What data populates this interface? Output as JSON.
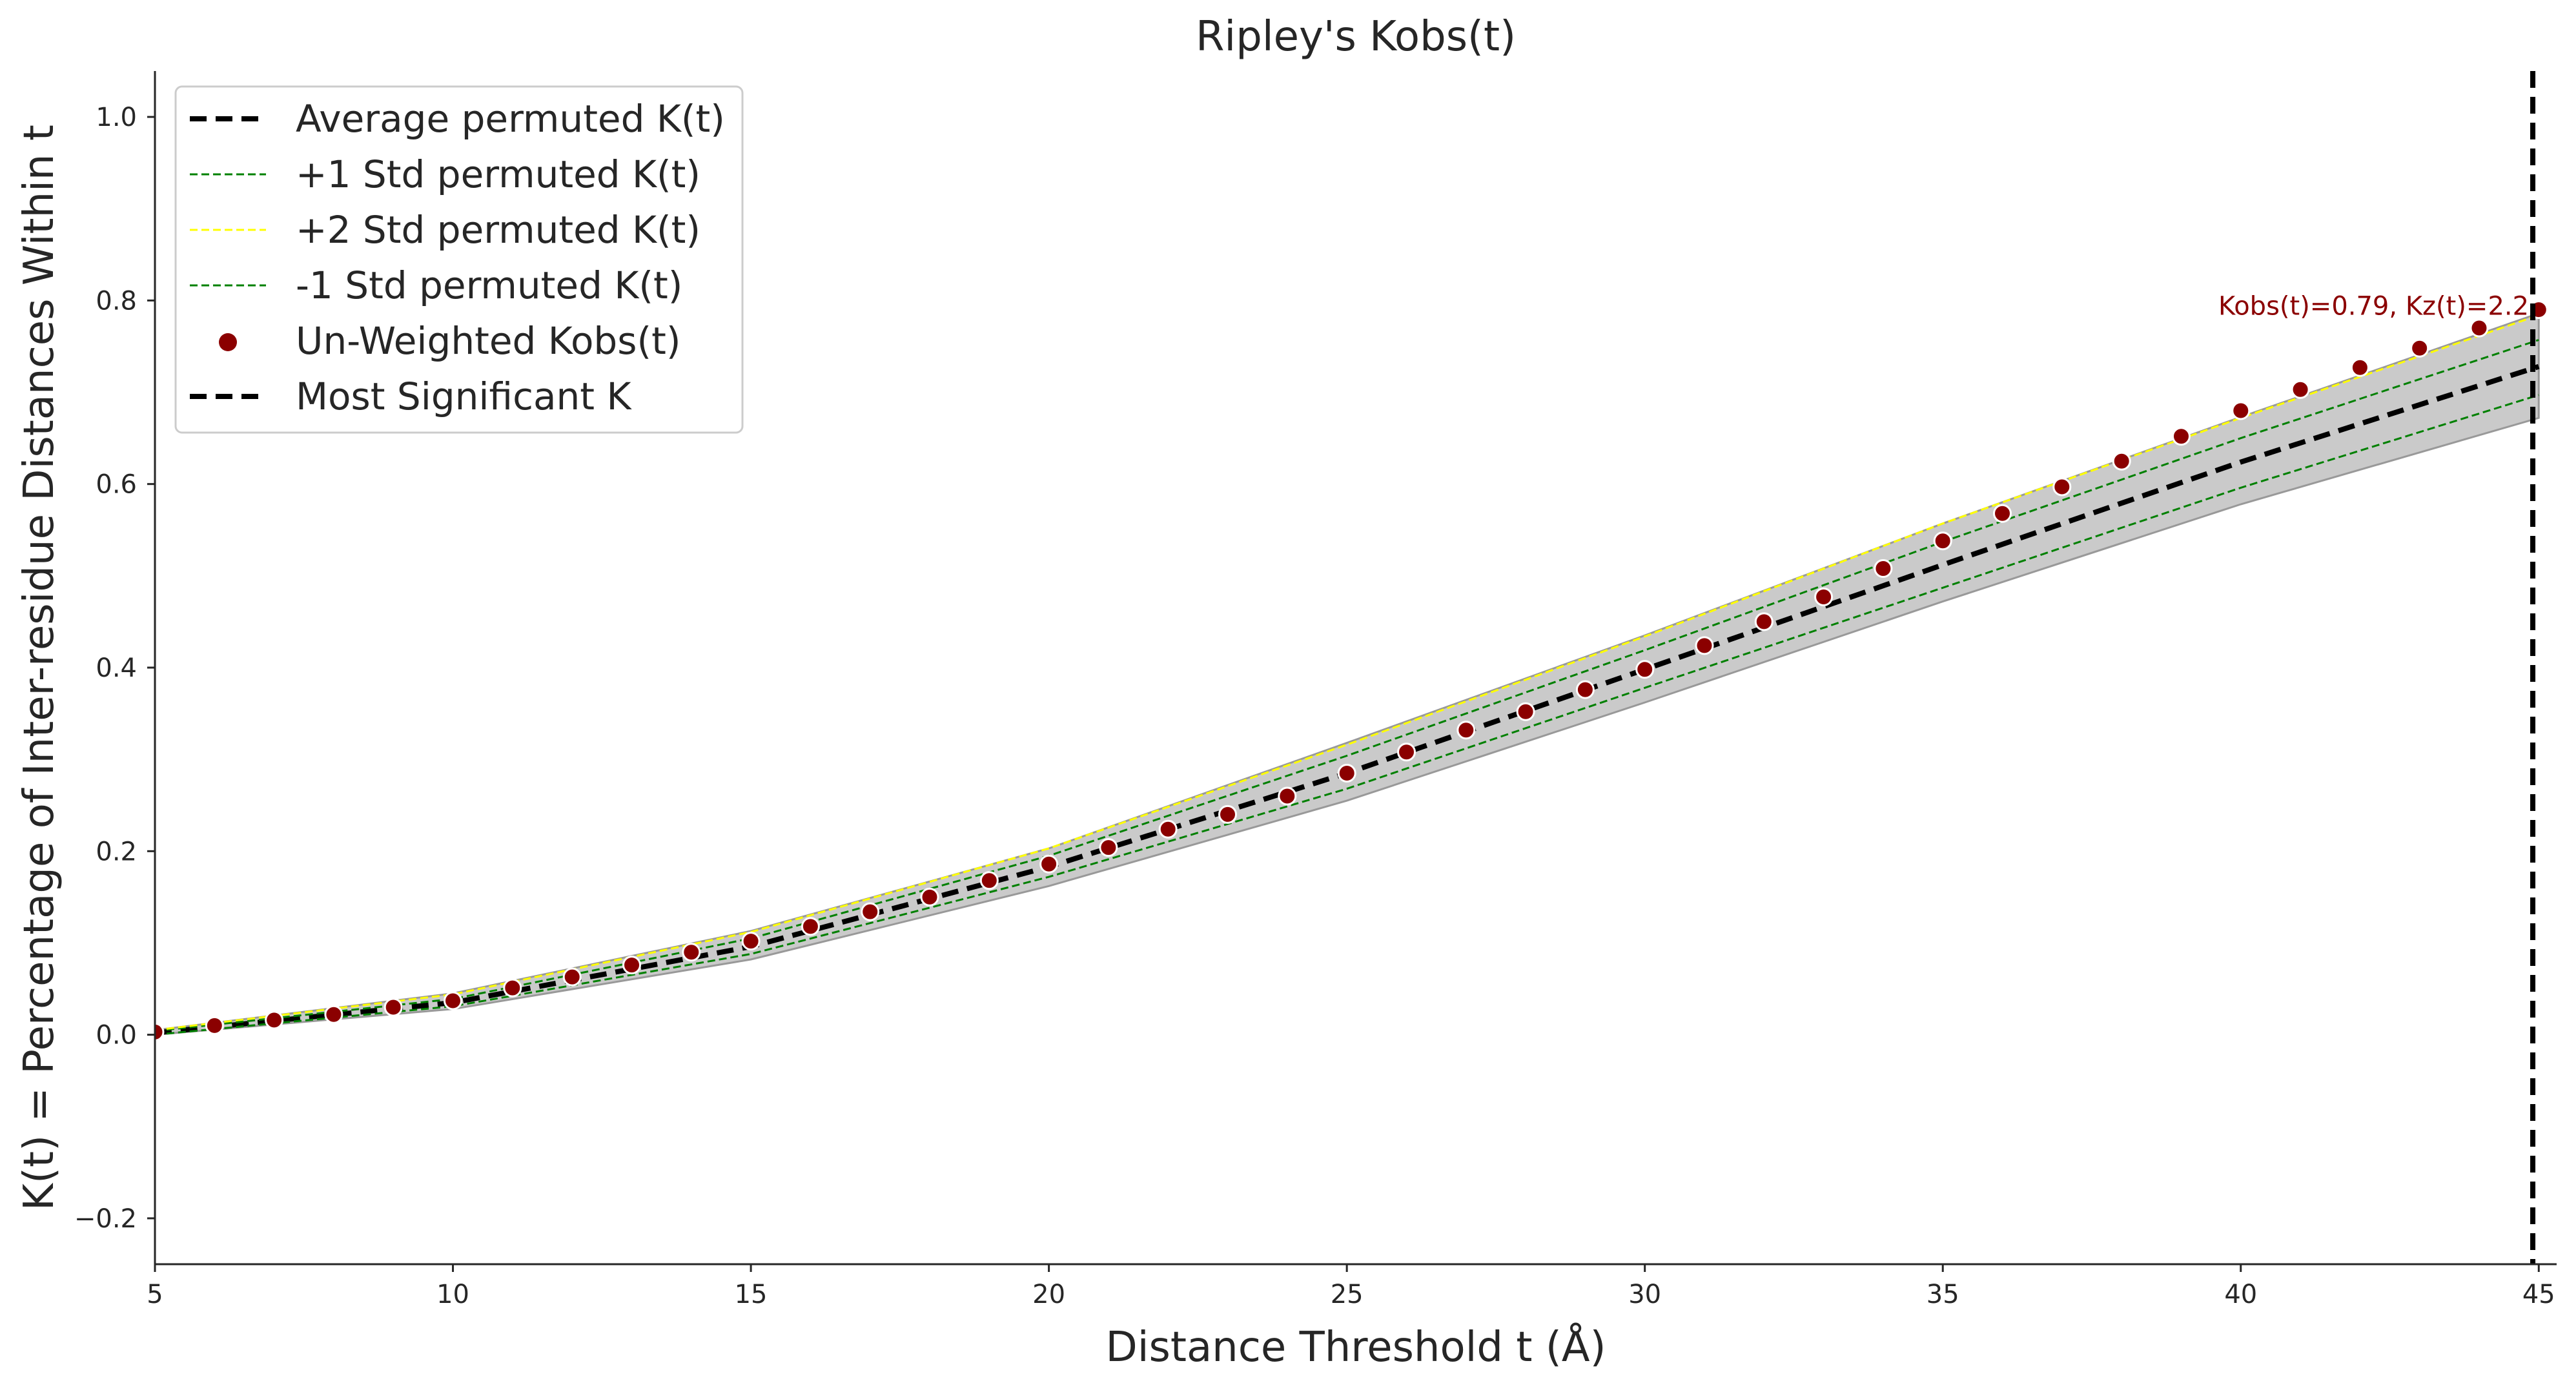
{
  "chart_data": {
    "type": "line",
    "title": "Ripley's Kobs(t)",
    "xlabel": "Distance Threshold t (Å)",
    "ylabel": "K(t) = Percentage of Inter-residue Distances Within t",
    "xlim": [
      5,
      45.3
    ],
    "ylim": [
      -0.25,
      1.05
    ],
    "xticks": [
      5,
      10,
      15,
      20,
      25,
      30,
      35,
      40,
      45
    ],
    "xtick_labels": [
      "5",
      "10",
      "15",
      "20",
      "25",
      "30",
      "35",
      "40",
      "45"
    ],
    "yticks": [
      -0.2,
      0.0,
      0.2,
      0.4,
      0.6,
      0.8,
      1.0
    ],
    "ytick_labels": [
      "−0.2",
      "0.0",
      "0.2",
      "0.4",
      "0.6",
      "0.8",
      "1.0"
    ],
    "grid": false,
    "legend_position": "top-left",
    "x": [
      5,
      10,
      15,
      20,
      25,
      30,
      35,
      40,
      45
    ],
    "band": {
      "lower": [
        0.0,
        0.028,
        0.082,
        0.162,
        0.255,
        0.362,
        0.472,
        0.578,
        0.672
      ],
      "upper": [
        0.005,
        0.045,
        0.113,
        0.203,
        0.318,
        0.435,
        0.557,
        0.673,
        0.786
      ],
      "color": "#b8b8b8"
    },
    "series": [
      {
        "name": "Average permuted K(t)",
        "style": "dashed-thick",
        "color": "#000000",
        "values": [
          0.002,
          0.035,
          0.096,
          0.183,
          0.285,
          0.398,
          0.512,
          0.624,
          0.728
        ]
      },
      {
        "name": "+1 Std permuted K(t)",
        "style": "dashed-thin",
        "color": "#008000",
        "values": [
          0.004,
          0.039,
          0.105,
          0.195,
          0.304,
          0.419,
          0.537,
          0.65,
          0.757
        ]
      },
      {
        "name": "+2 Std permuted K(t)",
        "style": "dashed-thin",
        "color": "#ffff00",
        "values": [
          0.005,
          0.044,
          0.112,
          0.203,
          0.316,
          0.434,
          0.557,
          0.672,
          0.784
        ]
      },
      {
        "name": "-1 Std permuted K(t)",
        "style": "dashed-thin",
        "color": "#008000",
        "values": [
          0.0,
          0.031,
          0.088,
          0.172,
          0.268,
          0.378,
          0.487,
          0.596,
          0.697
        ]
      }
    ],
    "scatter": {
      "name": "Un-Weighted Kobs(t)",
      "color": "#8b0000",
      "x": [
        5,
        6,
        7,
        8,
        9,
        10,
        11,
        12,
        13,
        14,
        15,
        16,
        17,
        18,
        19,
        20,
        21,
        22,
        23,
        24,
        25,
        26,
        27,
        28,
        29,
        30,
        31,
        32,
        33,
        34,
        35,
        36,
        37,
        38,
        39,
        40,
        41,
        42,
        43,
        44,
        45
      ],
      "y": [
        0.003,
        0.01,
        0.016,
        0.022,
        0.03,
        0.037,
        0.051,
        0.063,
        0.076,
        0.09,
        0.102,
        0.118,
        0.134,
        0.15,
        0.168,
        0.186,
        0.204,
        0.224,
        0.24,
        0.26,
        0.285,
        0.308,
        0.332,
        0.352,
        0.376,
        0.398,
        0.424,
        0.45,
        0.477,
        0.508,
        0.538,
        0.568,
        0.597,
        0.625,
        0.652,
        0.68,
        0.703,
        0.727,
        0.748,
        0.77,
        0.79
      ]
    },
    "vline": {
      "name": "Most Significant K",
      "x": 44.9,
      "color": "#000000"
    },
    "annotation": {
      "text": "Kobs(t)=0.79, Kz(t)=2.2",
      "x": 44.9,
      "y": 0.79
    }
  }
}
